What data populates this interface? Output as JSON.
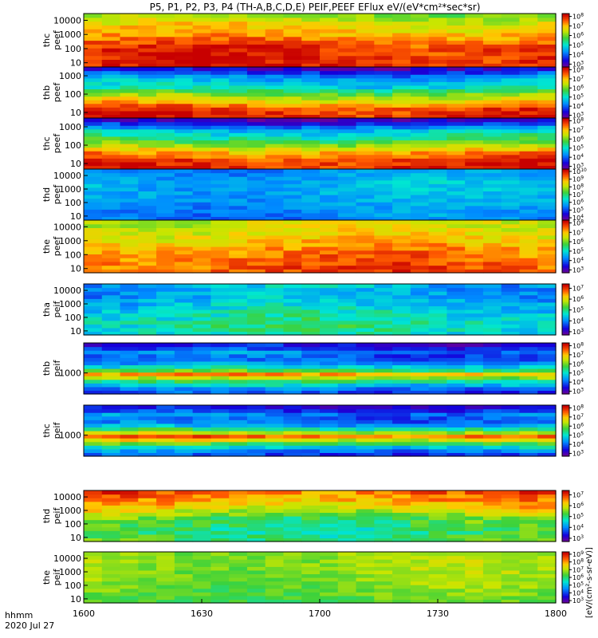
{
  "chart_data": {
    "type": "heatmap",
    "title": "P5, P1, P2, P3, P4 (TH-A,B,C,D,E) PEIF,PEEF EFlux eV/(eV*cm²*sec*sr)",
    "x_ticks": [
      "1600",
      "1630",
      "1700",
      "1730",
      "1800"
    ],
    "x_title": [
      "hhmm",
      "2020 Jul 27"
    ],
    "xlim": [
      "1600",
      "1800"
    ],
    "colorbar_label": "[eV/(cm²-s-sr-eV)]",
    "panels": [
      {
        "name": "thc peef",
        "label": [
          "thc",
          "peef"
        ],
        "y_scale": "log",
        "ylim": [
          5,
          30000
        ],
        "y_ticks": [
          "10000",
          "1000",
          "100",
          "10"
        ],
        "y_tick_values": [
          10000,
          1000,
          100,
          10
        ],
        "cb_exponents": [
          3,
          4,
          5,
          6,
          7,
          8
        ],
        "cb_range": [
          2.7,
          8.3
        ],
        "profile": [
          [
            1,
            8
          ],
          [
            2,
            8
          ],
          [
            3,
            7.2
          ],
          [
            4,
            6.6
          ],
          [
            5,
            5.6
          ]
        ]
      },
      {
        "name": "thb peef",
        "label": [
          "thb",
          "peef"
        ],
        "y_scale": "log",
        "ylim": [
          5,
          3000
        ],
        "y_ticks": [
          "1000",
          "100",
          "10"
        ],
        "y_tick_values": [
          1000,
          100,
          10
        ],
        "cb_exponents": [
          3,
          4,
          5,
          6,
          7,
          8
        ],
        "cb_range": [
          2.7,
          8.3
        ],
        "profile": [
          [
            0.7,
            8.1
          ],
          [
            1.2,
            7.9
          ],
          [
            1.6,
            7.0
          ],
          [
            2.0,
            6.1
          ],
          [
            2.4,
            5.0
          ],
          [
            2.8,
            4.6
          ],
          [
            3.1,
            4.0
          ],
          [
            3.4,
            3.2
          ]
        ]
      },
      {
        "name": "thc peef",
        "label": [
          "thc",
          "peef"
        ],
        "y_scale": "log",
        "ylim": [
          5,
          3000
        ],
        "y_ticks": [
          "1000",
          "100",
          "10"
        ],
        "y_tick_values": [
          1000,
          100,
          10
        ],
        "cb_exponents": [
          3,
          4,
          5,
          6,
          7,
          8
        ],
        "cb_range": [
          2.7,
          8.3
        ],
        "profile": [
          [
            0.7,
            8.1
          ],
          [
            1.2,
            7.9
          ],
          [
            1.6,
            7.3
          ],
          [
            2.0,
            6.3
          ],
          [
            2.4,
            5.4
          ],
          [
            2.8,
            4.8
          ],
          [
            3.1,
            3.8
          ],
          [
            3.4,
            3.0
          ]
        ]
      },
      {
        "name": "thd peef",
        "label": [
          "thd",
          "peef"
        ],
        "y_scale": "log",
        "ylim": [
          5,
          30000
        ],
        "y_ticks": [
          "10000",
          "1000",
          "100",
          "10"
        ],
        "y_tick_values": [
          10000,
          1000,
          100,
          10
        ],
        "cb_exponents": [
          4,
          5,
          6,
          7,
          8,
          9,
          10
        ],
        "cb_range": [
          3.7,
          10.3
        ],
        "profile": [
          [
            0.8,
            5.5
          ],
          [
            1.5,
            5.6
          ],
          [
            2.5,
            5.9
          ],
          [
            3.5,
            6.0
          ],
          [
            4.3,
            5.6
          ]
        ]
      },
      {
        "name": "the peef",
        "label": [
          "the",
          "peef"
        ],
        "y_scale": "log",
        "ylim": [
          5,
          30000
        ],
        "y_ticks": [
          "10000",
          "1000",
          "100",
          "10"
        ],
        "y_tick_values": [
          10000,
          1000,
          100,
          10
        ],
        "cb_exponents": [
          3,
          4,
          5,
          6,
          7,
          8
        ],
        "cb_range": [
          2.7,
          8.3
        ],
        "profile": [
          [
            1,
            7.7
          ],
          [
            2,
            7.5
          ],
          [
            3,
            7.0
          ],
          [
            4,
            6.6
          ]
        ]
      },
      {
        "name": "tha peif",
        "label": [
          "tha",
          "peif"
        ],
        "y_scale": "log",
        "ylim": [
          5,
          30000
        ],
        "y_ticks": [
          "10000",
          "1000",
          "100",
          "10"
        ],
        "y_tick_values": [
          10000,
          1000,
          100,
          10
        ],
        "cb_exponents": [
          3,
          4,
          5,
          6,
          7
        ],
        "cb_range": [
          2.7,
          7.4
        ],
        "profile": [
          [
            0.8,
            4.7
          ],
          [
            1.5,
            4.9
          ],
          [
            2.5,
            4.6
          ],
          [
            3.5,
            4.2
          ],
          [
            4.3,
            4.3
          ]
        ]
      },
      {
        "name": "thb peif",
        "label": [
          "thb",
          "peif"
        ],
        "y_scale": "log",
        "ylim": [
          200,
          10000
        ],
        "y_ticks": [
          "1000"
        ],
        "y_tick_values": [
          1000
        ],
        "cb_exponents": [
          3,
          4,
          5,
          6,
          7,
          8
        ],
        "cb_range": [
          2.7,
          8.3
        ],
        "profile": [
          [
            2.4,
            3.8
          ],
          [
            2.6,
            4.8
          ],
          [
            2.8,
            5.8
          ],
          [
            2.95,
            7.4
          ],
          [
            3.1,
            5.6
          ],
          [
            3.3,
            4.4
          ],
          [
            3.5,
            3.8
          ],
          [
            3.7,
            4.2
          ],
          [
            3.9,
            3.4
          ]
        ]
      },
      {
        "name": "thc peif",
        "label": [
          "thc",
          "peif"
        ],
        "y_scale": "log",
        "ylim": [
          200,
          10000
        ],
        "y_ticks": [
          "1000"
        ],
        "y_tick_values": [
          1000
        ],
        "cb_exponents": [
          3,
          4,
          5,
          6,
          7,
          8
        ],
        "cb_range": [
          2.7,
          8.3
        ],
        "profile": [
          [
            2.4,
            3.8
          ],
          [
            2.6,
            4.8
          ],
          [
            2.8,
            6.2
          ],
          [
            2.95,
            7.8
          ],
          [
            3.1,
            6.3
          ],
          [
            3.3,
            4.6
          ],
          [
            3.5,
            3.9
          ],
          [
            3.7,
            4.2
          ],
          [
            3.9,
            3.4
          ]
        ]
      },
      {
        "name": "thd peif",
        "label": [
          "thd",
          "peif"
        ],
        "y_scale": "log",
        "ylim": [
          5,
          30000
        ],
        "y_ticks": [
          "10000",
          "1000",
          "100",
          "10"
        ],
        "y_tick_values": [
          10000,
          1000,
          100,
          10
        ],
        "cb_exponents": [
          3,
          4,
          5,
          6,
          7
        ],
        "cb_range": [
          2.7,
          7.4
        ],
        "profile": [
          [
            0.8,
            5.2
          ],
          [
            1.5,
            5.0
          ],
          [
            2.5,
            5.4
          ],
          [
            3.5,
            6.4
          ],
          [
            4.3,
            6.8
          ]
        ]
      },
      {
        "name": "the peif",
        "label": [
          "the",
          "peif"
        ],
        "y_scale": "log",
        "ylim": [
          5,
          30000
        ],
        "y_ticks": [
          "10000",
          "1000",
          "100",
          "10"
        ],
        "y_tick_values": [
          10000,
          1000,
          100,
          10
        ],
        "cb_exponents": [
          3,
          4,
          5,
          6,
          7,
          8,
          9
        ],
        "cb_range": [
          2.7,
          9.3
        ],
        "profile": [
          [
            0.8,
            6.4
          ],
          [
            1.5,
            6.6
          ],
          [
            2.5,
            6.8
          ],
          [
            3.5,
            6.9
          ],
          [
            4.3,
            6.9
          ]
        ]
      }
    ]
  }
}
